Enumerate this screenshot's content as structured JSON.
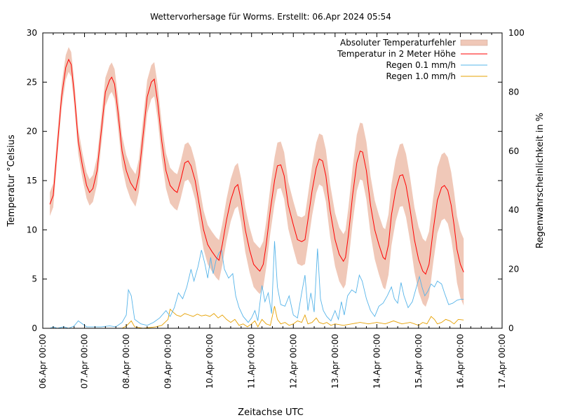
{
  "chart_data": {
    "type": "line",
    "title": "Wettervorhersage für Worms. Erstellt: 06.Apr 2024 05:54",
    "xlabel": "Zeitachse UTC",
    "ylabel_left": "Temperatur °Celsius",
    "ylabel_right": "Regenwahrscheinlichkeit in %",
    "xlim": [
      0,
      11
    ],
    "ylim_left": [
      0,
      30
    ],
    "ylim_right": [
      0,
      100
    ],
    "x_ticks": [
      "06.Apr 00:00",
      "07.Apr 00:00",
      "08.Apr 00:00",
      "09.Apr 00:00",
      "10.Apr 00:00",
      "11.Apr 00:00",
      "12.Apr 00:00",
      "13.Apr 00:00",
      "14.Apr 00:00",
      "15.Apr 00:00",
      "16.Apr 00:00",
      "17.Apr 00:00"
    ],
    "y_ticks_left": [
      "0",
      "5",
      "10",
      "15",
      "20",
      "25",
      "30"
    ],
    "y_ticks_right": [
      "0",
      "20",
      "40",
      "60",
      "80",
      "100"
    ],
    "grid": false,
    "legend_position": "top-right",
    "x_unit": "days since 06.Apr 00:00",
    "temperature": {
      "name": "Temperatur in 2 Meter Höhe",
      "color": "#ff0000",
      "points": [
        [
          0.17,
          12.6
        ],
        [
          0.25,
          13.5
        ],
        [
          0.35,
          18.5
        ],
        [
          0.45,
          23.5
        ],
        [
          0.55,
          26.5
        ],
        [
          0.62,
          27.3
        ],
        [
          0.68,
          26.8
        ],
        [
          0.75,
          24.0
        ],
        [
          0.85,
          19.0
        ],
        [
          0.95,
          16.5
        ],
        [
          1.05,
          14.5
        ],
        [
          1.12,
          13.8
        ],
        [
          1.2,
          14.2
        ],
        [
          1.3,
          16.0
        ],
        [
          1.4,
          20.0
        ],
        [
          1.5,
          24.0
        ],
        [
          1.6,
          25.2
        ],
        [
          1.65,
          25.5
        ],
        [
          1.72,
          24.8
        ],
        [
          1.8,
          22.0
        ],
        [
          1.9,
          18.0
        ],
        [
          2.0,
          16.0
        ],
        [
          2.1,
          14.8
        ],
        [
          2.22,
          14.0
        ],
        [
          2.3,
          15.5
        ],
        [
          2.4,
          19.5
        ],
        [
          2.5,
          23.5
        ],
        [
          2.6,
          25.0
        ],
        [
          2.67,
          25.3
        ],
        [
          2.75,
          23.0
        ],
        [
          2.85,
          19.0
        ],
        [
          2.95,
          16.0
        ],
        [
          3.05,
          14.5
        ],
        [
          3.15,
          14.0
        ],
        [
          3.22,
          13.8
        ],
        [
          3.3,
          15.0
        ],
        [
          3.4,
          16.8
        ],
        [
          3.48,
          17.0
        ],
        [
          3.55,
          16.5
        ],
        [
          3.65,
          15.0
        ],
        [
          3.75,
          12.5
        ],
        [
          3.85,
          10.0
        ],
        [
          3.95,
          8.5
        ],
        [
          4.05,
          7.8
        ],
        [
          4.15,
          7.2
        ],
        [
          4.22,
          6.9
        ],
        [
          4.3,
          8.5
        ],
        [
          4.4,
          11.0
        ],
        [
          4.5,
          13.0
        ],
        [
          4.6,
          14.3
        ],
        [
          4.67,
          14.6
        ],
        [
          4.75,
          13.0
        ],
        [
          4.85,
          10.0
        ],
        [
          4.95,
          8.0
        ],
        [
          5.05,
          6.5
        ],
        [
          5.15,
          6.0
        ],
        [
          5.2,
          5.8
        ],
        [
          5.28,
          6.5
        ],
        [
          5.35,
          8.5
        ],
        [
          5.45,
          12.0
        ],
        [
          5.55,
          15.0
        ],
        [
          5.62,
          16.5
        ],
        [
          5.7,
          16.6
        ],
        [
          5.78,
          15.5
        ],
        [
          5.88,
          12.5
        ],
        [
          6.0,
          10.5
        ],
        [
          6.1,
          9.0
        ],
        [
          6.2,
          8.8
        ],
        [
          6.28,
          9.0
        ],
        [
          6.35,
          11.0
        ],
        [
          6.45,
          14.0
        ],
        [
          6.55,
          16.3
        ],
        [
          6.62,
          17.2
        ],
        [
          6.7,
          17.0
        ],
        [
          6.78,
          15.5
        ],
        [
          6.88,
          12.0
        ],
        [
          7.0,
          9.0
        ],
        [
          7.1,
          7.5
        ],
        [
          7.2,
          6.8
        ],
        [
          7.25,
          7.2
        ],
        [
          7.32,
          9.5
        ],
        [
          7.42,
          13.5
        ],
        [
          7.52,
          16.8
        ],
        [
          7.6,
          18.0
        ],
        [
          7.66,
          17.9
        ],
        [
          7.75,
          16.0
        ],
        [
          7.85,
          12.5
        ],
        [
          7.95,
          10.0
        ],
        [
          8.05,
          8.5
        ],
        [
          8.15,
          7.2
        ],
        [
          8.2,
          7.0
        ],
        [
          8.28,
          8.5
        ],
        [
          8.35,
          11.5
        ],
        [
          8.45,
          14.0
        ],
        [
          8.55,
          15.5
        ],
        [
          8.62,
          15.6
        ],
        [
          8.7,
          14.5
        ],
        [
          8.8,
          12.0
        ],
        [
          8.9,
          9.0
        ],
        [
          9.0,
          7.0
        ],
        [
          9.1,
          5.8
        ],
        [
          9.17,
          5.5
        ],
        [
          9.25,
          6.5
        ],
        [
          9.35,
          10.0
        ],
        [
          9.45,
          13.0
        ],
        [
          9.55,
          14.3
        ],
        [
          9.62,
          14.5
        ],
        [
          9.7,
          14.0
        ],
        [
          9.78,
          12.5
        ],
        [
          9.85,
          10.5
        ],
        [
          9.92,
          8.0
        ],
        [
          10.0,
          6.5
        ],
        [
          10.08,
          5.7
        ]
      ]
    },
    "error_band": {
      "name": "Absoluter Temperaturfehler",
      "color": "#f0c8b8",
      "half_width": [
        [
          0.17,
          1.2
        ],
        [
          1.0,
          1.3
        ],
        [
          2.0,
          1.6
        ],
        [
          3.0,
          1.8
        ],
        [
          4.0,
          2.0
        ],
        [
          5.0,
          2.3
        ],
        [
          6.0,
          2.4
        ],
        [
          7.0,
          2.7
        ],
        [
          8.0,
          3.0
        ],
        [
          9.0,
          3.3
        ],
        [
          10.08,
          3.4
        ]
      ]
    },
    "rain_01": {
      "name": "Regen 0.1 mm/h",
      "color": "#56b4e9",
      "points": [
        [
          0.17,
          0
        ],
        [
          0.25,
          0.5
        ],
        [
          0.35,
          0
        ],
        [
          0.5,
          0.5
        ],
        [
          0.62,
          0
        ],
        [
          0.75,
          0.8
        ],
        [
          0.85,
          2.5
        ],
        [
          0.95,
          1.5
        ],
        [
          1.05,
          0.5
        ],
        [
          1.2,
          0.5
        ],
        [
          1.4,
          0.5
        ],
        [
          1.6,
          0.8
        ],
        [
          1.75,
          0.5
        ],
        [
          1.9,
          2.0
        ],
        [
          2.0,
          4.5
        ],
        [
          2.05,
          13.0
        ],
        [
          2.12,
          11.0
        ],
        [
          2.2,
          3.0
        ],
        [
          2.35,
          1.5
        ],
        [
          2.5,
          1.0
        ],
        [
          2.65,
          2.0
        ],
        [
          2.8,
          3.5
        ],
        [
          2.95,
          6.0
        ],
        [
          3.05,
          4.0
        ],
        [
          3.15,
          7.0
        ],
        [
          3.25,
          12.0
        ],
        [
          3.35,
          10.0
        ],
        [
          3.45,
          14.0
        ],
        [
          3.55,
          20.0
        ],
        [
          3.62,
          16.0
        ],
        [
          3.72,
          21.0
        ],
        [
          3.8,
          26.5
        ],
        [
          3.88,
          22.0
        ],
        [
          3.95,
          17.0
        ],
        [
          4.02,
          24.0
        ],
        [
          4.08,
          18.5
        ],
        [
          4.15,
          23.0
        ],
        [
          4.22,
          25.5
        ],
        [
          4.28,
          26.5
        ],
        [
          4.35,
          20.0
        ],
        [
          4.45,
          17.0
        ],
        [
          4.55,
          18.5
        ],
        [
          4.62,
          11.0
        ],
        [
          4.7,
          7.0
        ],
        [
          4.8,
          4.0
        ],
        [
          4.92,
          2.0
        ],
        [
          5.0,
          3.5
        ],
        [
          5.08,
          6.0
        ],
        [
          5.15,
          2.5
        ],
        [
          5.25,
          14.5
        ],
        [
          5.32,
          9.0
        ],
        [
          5.4,
          12.0
        ],
        [
          5.48,
          5.0
        ],
        [
          5.55,
          29.5
        ],
        [
          5.62,
          14.0
        ],
        [
          5.7,
          8.0
        ],
        [
          5.8,
          7.5
        ],
        [
          5.9,
          11.0
        ],
        [
          6.0,
          4.5
        ],
        [
          6.1,
          3.5
        ],
        [
          6.2,
          12.0
        ],
        [
          6.28,
          18.0
        ],
        [
          6.35,
          6.0
        ],
        [
          6.42,
          12.0
        ],
        [
          6.5,
          5.5
        ],
        [
          6.58,
          27.0
        ],
        [
          6.65,
          10.0
        ],
        [
          6.72,
          6.0
        ],
        [
          6.8,
          4.0
        ],
        [
          6.9,
          2.5
        ],
        [
          7.0,
          6.0
        ],
        [
          7.08,
          3.0
        ],
        [
          7.15,
          9.0
        ],
        [
          7.22,
          4.5
        ],
        [
          7.3,
          11.0
        ],
        [
          7.4,
          13.0
        ],
        [
          7.5,
          12.0
        ],
        [
          7.58,
          18.0
        ],
        [
          7.65,
          16.0
        ],
        [
          7.75,
          10.0
        ],
        [
          7.85,
          6.0
        ],
        [
          7.95,
          4.0
        ],
        [
          8.05,
          7.5
        ],
        [
          8.15,
          8.5
        ],
        [
          8.25,
          11.0
        ],
        [
          8.35,
          14.0
        ],
        [
          8.42,
          10.0
        ],
        [
          8.5,
          8.5
        ],
        [
          8.58,
          15.5
        ],
        [
          8.65,
          11.0
        ],
        [
          8.75,
          7.0
        ],
        [
          8.85,
          9.0
        ],
        [
          8.95,
          14.0
        ],
        [
          9.02,
          17.5
        ],
        [
          9.08,
          14.0
        ],
        [
          9.15,
          11.0
        ],
        [
          9.22,
          12.5
        ],
        [
          9.3,
          15.0
        ],
        [
          9.38,
          14.0
        ],
        [
          9.45,
          16.0
        ],
        [
          9.55,
          15.0
        ],
        [
          9.62,
          12.0
        ],
        [
          9.72,
          8.0
        ],
        [
          9.82,
          8.5
        ],
        [
          9.92,
          9.5
        ],
        [
          10.0,
          9.8
        ],
        [
          10.08,
          9.8
        ]
      ]
    },
    "rain_10": {
      "name": "Regen 1.0 mm/h",
      "color": "#e6a000",
      "points": [
        [
          0.17,
          0
        ],
        [
          1.9,
          0
        ],
        [
          2.0,
          0.8
        ],
        [
          2.05,
          1.5
        ],
        [
          2.12,
          2.5
        ],
        [
          2.2,
          0.5
        ],
        [
          2.4,
          0
        ],
        [
          2.7,
          0.5
        ],
        [
          2.85,
          1.0
        ],
        [
          3.0,
          3.0
        ],
        [
          3.05,
          6.5
        ],
        [
          3.12,
          5.5
        ],
        [
          3.2,
          4.5
        ],
        [
          3.3,
          4.0
        ],
        [
          3.4,
          5.0
        ],
        [
          3.5,
          4.5
        ],
        [
          3.6,
          4.0
        ],
        [
          3.7,
          4.8
        ],
        [
          3.8,
          4.2
        ],
        [
          3.9,
          4.5
        ],
        [
          4.0,
          4.0
        ],
        [
          4.1,
          5.0
        ],
        [
          4.2,
          3.5
        ],
        [
          4.3,
          4.5
        ],
        [
          4.4,
          3.0
        ],
        [
          4.5,
          2.0
        ],
        [
          4.6,
          3.0
        ],
        [
          4.7,
          1.0
        ],
        [
          4.8,
          1.5
        ],
        [
          4.9,
          0.5
        ],
        [
          5.0,
          1.5
        ],
        [
          5.08,
          2.5
        ],
        [
          5.15,
          0.5
        ],
        [
          5.25,
          3.0
        ],
        [
          5.35,
          1.5
        ],
        [
          5.45,
          1.0
        ],
        [
          5.55,
          7.5
        ],
        [
          5.62,
          3.0
        ],
        [
          5.7,
          1.5
        ],
        [
          5.8,
          2.0
        ],
        [
          5.9,
          1.0
        ],
        [
          6.0,
          1.5
        ],
        [
          6.1,
          2.5
        ],
        [
          6.2,
          2.0
        ],
        [
          6.28,
          4.5
        ],
        [
          6.35,
          1.5
        ],
        [
          6.45,
          2.0
        ],
        [
          6.55,
          3.5
        ],
        [
          6.62,
          2.0
        ],
        [
          6.72,
          1.5
        ],
        [
          6.8,
          2.0
        ],
        [
          6.9,
          1.0
        ],
        [
          7.0,
          1.5
        ],
        [
          7.2,
          1.0
        ],
        [
          7.4,
          1.5
        ],
        [
          7.6,
          2.0
        ],
        [
          7.8,
          1.5
        ],
        [
          8.0,
          2.0
        ],
        [
          8.2,
          1.5
        ],
        [
          8.4,
          2.5
        ],
        [
          8.6,
          1.5
        ],
        [
          8.8,
          2.0
        ],
        [
          9.0,
          1.0
        ],
        [
          9.1,
          2.0
        ],
        [
          9.2,
          1.5
        ],
        [
          9.3,
          4.0
        ],
        [
          9.38,
          3.0
        ],
        [
          9.45,
          1.5
        ],
        [
          9.55,
          2.0
        ],
        [
          9.65,
          3.0
        ],
        [
          9.75,
          2.5
        ],
        [
          9.85,
          1.5
        ],
        [
          9.95,
          3.0
        ],
        [
          10.08,
          2.8
        ]
      ]
    }
  }
}
